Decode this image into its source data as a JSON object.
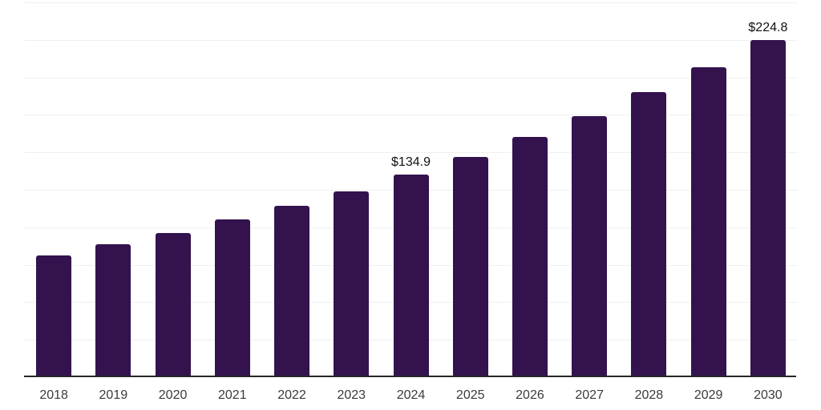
{
  "chart_data": {
    "type": "bar",
    "title": "",
    "xlabel": "",
    "ylabel": "",
    "categories": [
      "2018",
      "2019",
      "2020",
      "2021",
      "2022",
      "2023",
      "2024",
      "2025",
      "2026",
      "2027",
      "2028",
      "2029",
      "2030"
    ],
    "values": [
      81.0,
      88.8,
      96.1,
      105.0,
      114.2,
      124.2,
      134.9,
      147.0,
      160.1,
      174.4,
      190.0,
      206.8,
      224.8
    ],
    "data_labels": [
      "",
      "",
      "",
      "",
      "",
      "",
      "$134.9",
      "",
      "",
      "",
      "",
      "",
      "$224.8"
    ],
    "ylim": [
      0,
      250
    ],
    "grid_step": 25,
    "grid": "horizontal-light",
    "legend": "none",
    "y_tick_labels": "hidden",
    "currency_prefix": "$"
  },
  "colors": {
    "bar": "#33124e",
    "axis_line": "#262626",
    "gridline": "#f0f0f0",
    "x_tick_label": "#3a3a3a",
    "value_label": "#111111",
    "background": "#ffffff"
  }
}
